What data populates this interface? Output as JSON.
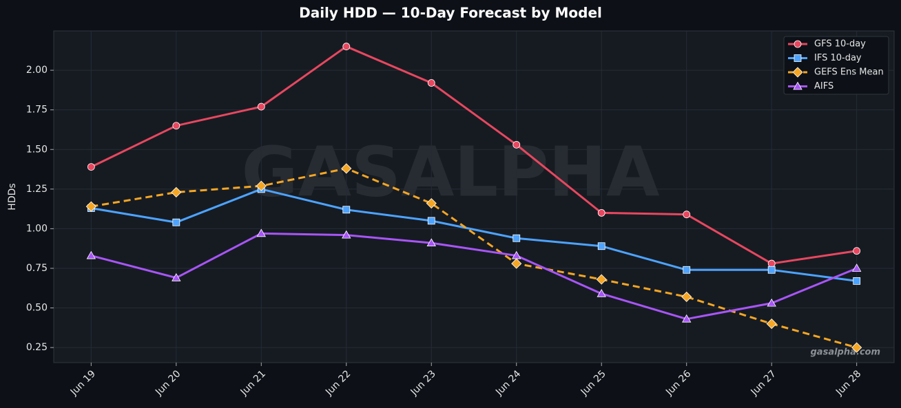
{
  "chart_data": {
    "type": "line",
    "title": "Daily HDD — 10-Day Forecast by Model",
    "y_label": "HDDs",
    "watermark": "GASALPHA",
    "credit": "gasalpha.com",
    "categories": [
      "Jun 19",
      "Jun 20",
      "Jun 21",
      "Jun 22",
      "Jun 23",
      "Jun 24",
      "Jun 25",
      "Jun 26",
      "Jun 27",
      "Jun 28"
    ],
    "series": [
      {
        "name": "GFS 10-day",
        "color": "#e8475f",
        "marker": "circle",
        "dashed": false,
        "values": [
          1.39,
          1.65,
          1.77,
          2.15,
          1.92,
          1.53,
          1.1,
          1.09,
          0.78,
          0.86
        ]
      },
      {
        "name": "IFS 10-day",
        "color": "#4da3ff",
        "marker": "square",
        "dashed": false,
        "values": [
          1.13,
          1.04,
          1.25,
          1.12,
          1.05,
          0.94,
          0.89,
          0.74,
          0.74,
          0.67
        ]
      },
      {
        "name": "GEFS Ens Mean",
        "color": "#f5a623",
        "marker": "diamond",
        "dashed": true,
        "values": [
          1.14,
          1.23,
          1.27,
          1.38,
          1.16,
          0.78,
          0.68,
          0.57,
          0.4,
          0.25
        ]
      },
      {
        "name": "AIFS",
        "color": "#a855f7",
        "marker": "triangle",
        "dashed": false,
        "values": [
          0.83,
          0.69,
          0.97,
          0.96,
          0.91,
          0.83,
          0.59,
          0.43,
          0.53,
          0.75
        ]
      }
    ],
    "ylim": [
      0.155,
      2.248
    ],
    "yticks": [
      {
        "value": 0.25,
        "label": "0.25"
      },
      {
        "value": 0.5,
        "label": "0.50"
      },
      {
        "value": 0.75,
        "label": "0.75"
      },
      {
        "value": 1,
        "label": "1.00"
      },
      {
        "value": 1.25,
        "label": "1.25"
      },
      {
        "value": 1.5,
        "label": "1.50"
      },
      {
        "value": 1.75,
        "label": "1.75"
      },
      {
        "value": 2,
        "label": "2.00"
      }
    ],
    "grid": true,
    "legend": "upper right"
  }
}
